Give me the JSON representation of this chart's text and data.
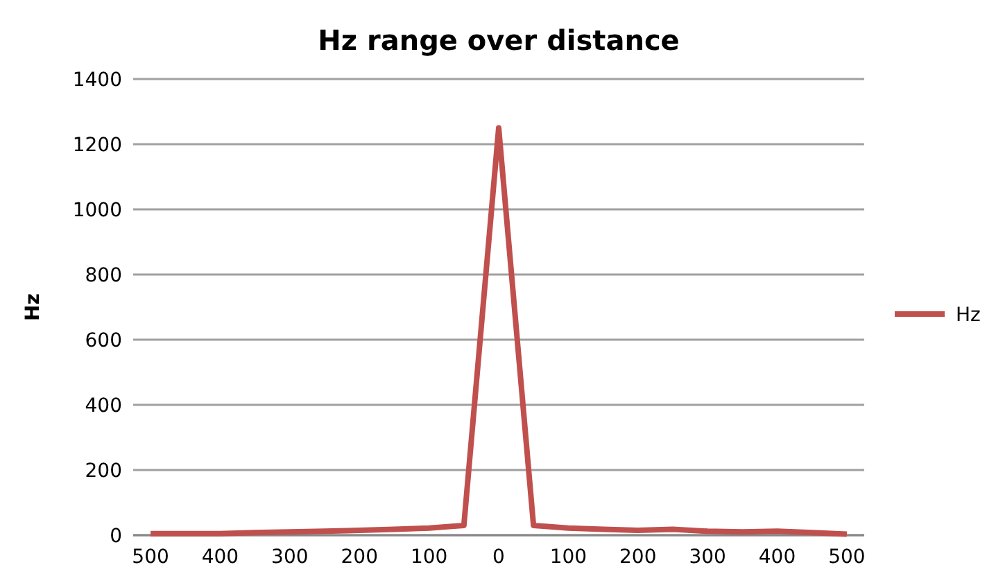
{
  "chart_data": {
    "type": "line",
    "title": "Hz range over distance",
    "ylabel": "Hz",
    "categories": [
      "500",
      null,
      "400",
      null,
      "300",
      null,
      "200",
      null,
      "100",
      null,
      "0",
      null,
      "100",
      null,
      "200",
      null,
      "300",
      null,
      "400",
      null,
      "500"
    ],
    "series": [
      {
        "name": "Hz",
        "color": "#c0504d",
        "values": [
          5,
          5,
          5,
          8,
          10,
          12,
          15,
          18,
          22,
          30,
          1250,
          30,
          22,
          18,
          15,
          18,
          12,
          10,
          12,
          8,
          3
        ]
      }
    ],
    "ylim": [
      0,
      1400
    ],
    "yticks": [
      0,
      200,
      400,
      600,
      800,
      1000,
      1200,
      1400
    ],
    "grid": "y",
    "legend": "right",
    "marker": "none",
    "line_style": "solid"
  }
}
